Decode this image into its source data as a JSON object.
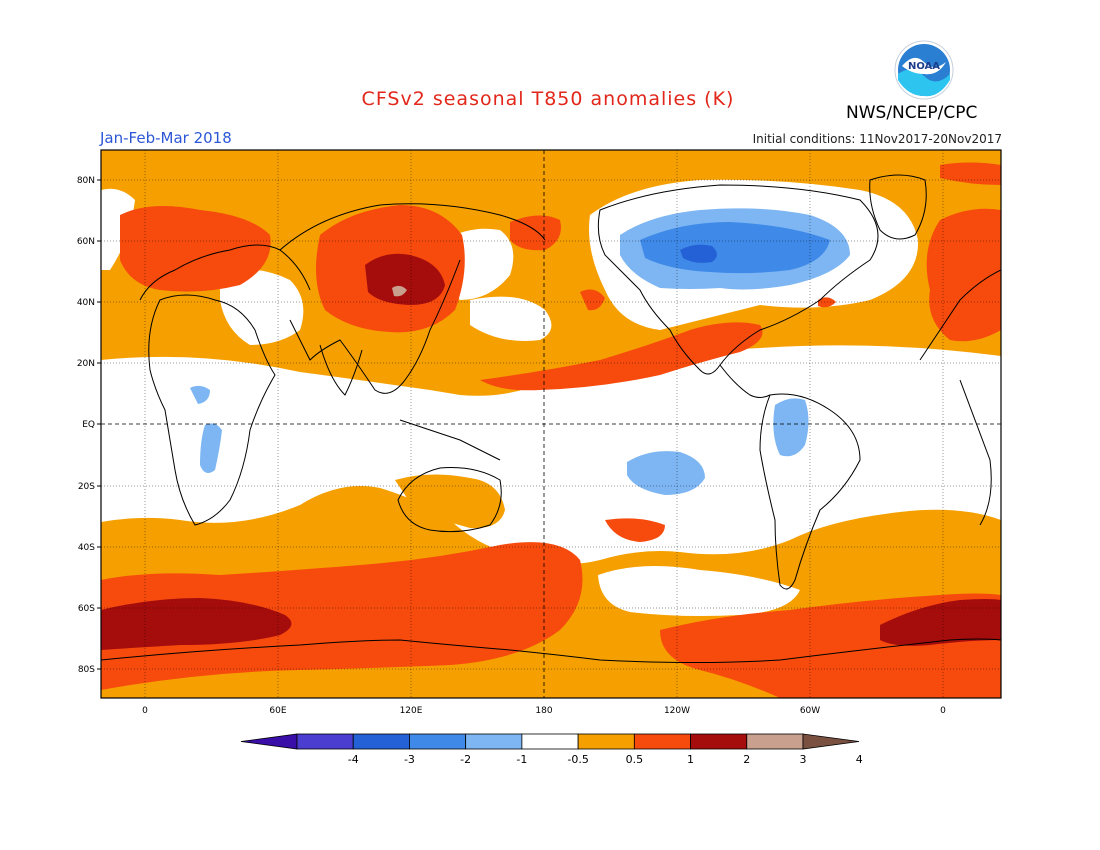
{
  "title": "CFSv2 seasonal T850 anomalies (K)",
  "season": "Jan-Feb-Mar 2018",
  "initial_conditions": "Initial conditions: 11Nov2017-20Nov2017",
  "agency": "NWS/NCEP/CPC",
  "logo_text": "NOAA",
  "lat_labels": [
    "80N",
    "60N",
    "40N",
    "20N",
    "EQ",
    "20S",
    "40S",
    "60S",
    "80S"
  ],
  "lon_labels": [
    "0",
    "60E",
    "120E",
    "180",
    "120W",
    "60W",
    "0"
  ],
  "colorbar": {
    "labels": [
      "-4",
      "-3",
      "-2",
      "-1",
      "-0.5",
      "0.5",
      "1",
      "2",
      "3",
      "4"
    ],
    "colors": [
      "#3a0ea8",
      "#4a3dd0",
      "#2461d6",
      "#3f8ae8",
      "#7db6f2",
      "#ffffff",
      "#f5a000",
      "#f74a0d",
      "#a50c0c",
      "#c9a08e",
      "#7a5040"
    ]
  }
}
